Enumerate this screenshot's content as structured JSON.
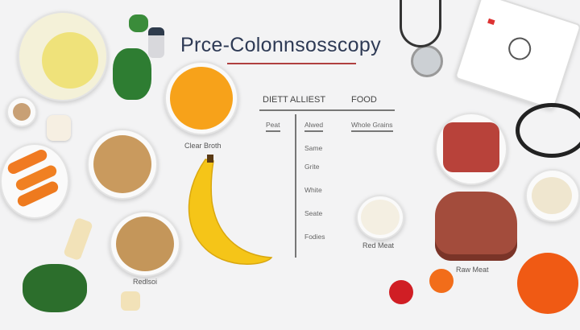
{
  "title": "Prce-Colonnsosscopy",
  "table": {
    "header_left": "DIETT ALLIEST",
    "header_right": "FOOD",
    "col1": "Peat",
    "col2": "Alwed",
    "col3": "Whole Grains",
    "rows": [
      "Same",
      "Grite",
      "White",
      "Seate",
      "Fodies"
    ]
  },
  "labels": {
    "clear_broth": "Clear Broth",
    "red_meat": "Red Meat",
    "raw_meat": "Raw Meat",
    "grains_bottom": "Redlsoi"
  },
  "colors": {
    "background": "#f3f3f4",
    "title_underline": "#b04040",
    "broth": "#f7a21a",
    "banana": "#f5c518",
    "meat": "#b8423a",
    "tomato": "#f05a14"
  }
}
